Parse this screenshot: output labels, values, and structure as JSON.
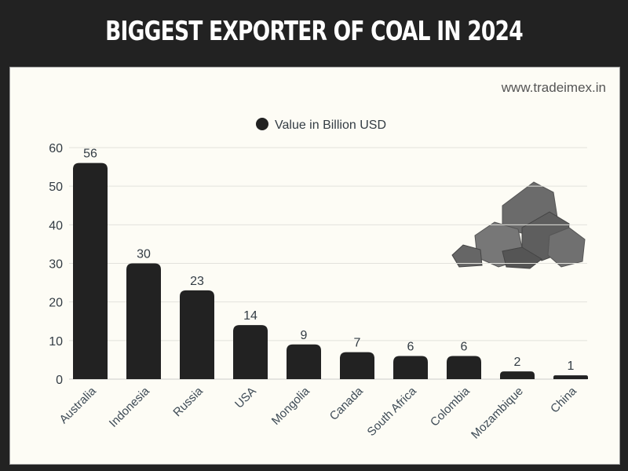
{
  "chart_data": {
    "type": "bar",
    "title": "BIGGEST EXPORTER OF COAL IN 2024",
    "categories": [
      "Australia",
      "Indonesia",
      "Russia",
      "USA",
      "Mongolia",
      "Canada",
      "South Africa",
      "Colombia",
      "Mozambique",
      "China"
    ],
    "series": [
      {
        "name": "Value in Billion USD",
        "values": [
          56,
          30,
          23,
          14,
          9,
          7,
          6,
          6,
          2,
          1
        ]
      }
    ],
    "ylim": [
      0,
      60
    ],
    "yticks": [
      0,
      10,
      20,
      30,
      40,
      50,
      60
    ],
    "grid": true,
    "legend": "top-center",
    "bar_color": "#222222"
  },
  "watermark": "www.tradeimex.in"
}
